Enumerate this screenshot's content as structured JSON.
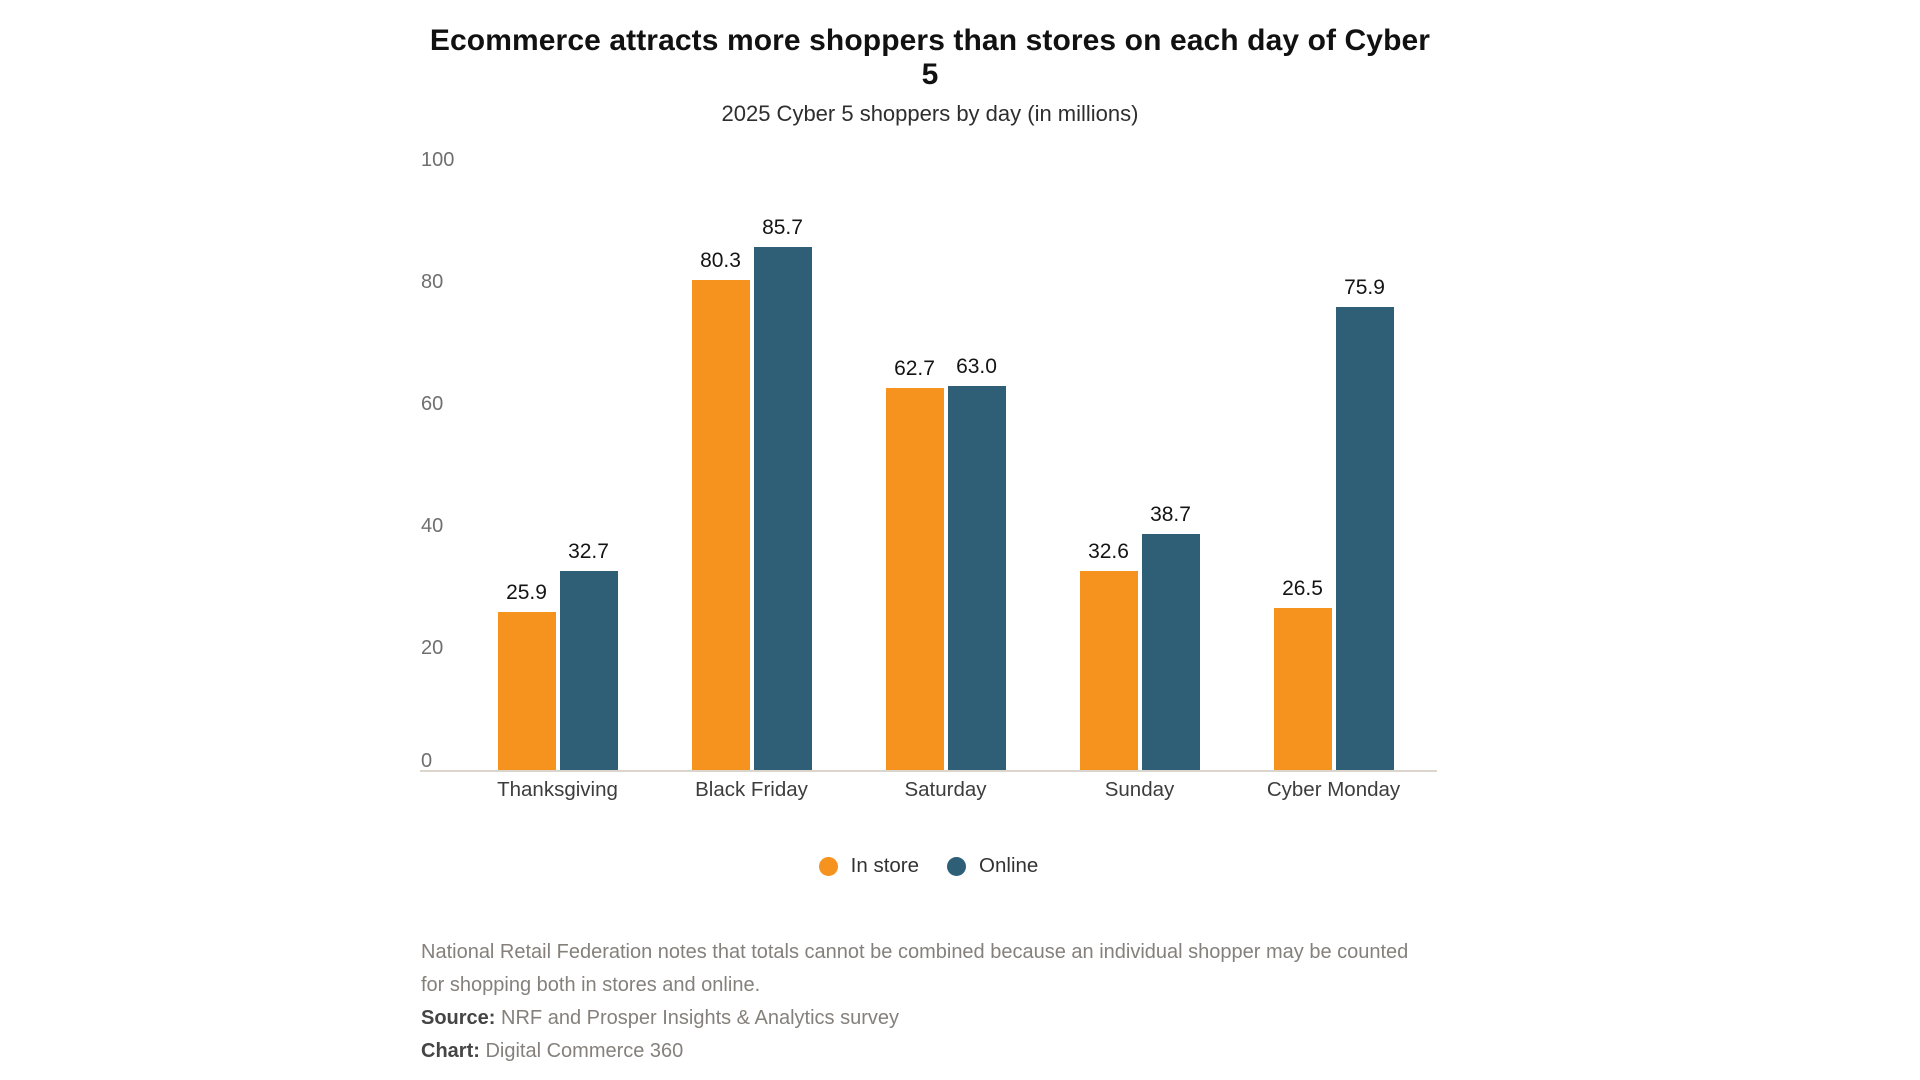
{
  "chart_data": {
    "type": "bar",
    "title": "Ecommerce attracts more shoppers than stores on each day of Cyber 5",
    "subtitle": "2025 Cyber 5 shoppers by day (in millions)",
    "categories": [
      "Thanksgiving",
      "Black Friday",
      "Saturday",
      "Sunday",
      "Cyber Monday"
    ],
    "series": [
      {
        "name": "In store",
        "color": "#F6921E",
        "values": [
          25.9,
          80.3,
          62.7,
          32.6,
          26.5
        ]
      },
      {
        "name": "Online",
        "color": "#2E5F77",
        "values": [
          32.7,
          85.7,
          63.0,
          38.7,
          75.9
        ]
      }
    ],
    "ylim": [
      0,
      100
    ],
    "yticks": [
      0,
      20,
      40,
      60,
      80,
      100
    ],
    "grid": false,
    "legend_position": "bottom",
    "value_label_decimals": 1
  },
  "notes": {
    "note": "National Retail Federation notes that totals cannot be combined because an individual shopper may be counted for shopping both in stores and online.",
    "source_label": "Source:",
    "source_value": "NRF and Prosper Insights & Analytics survey",
    "chart_label": "Chart:",
    "chart_value": "Digital Commerce 360"
  },
  "colors": {
    "in_store": "#F6921E",
    "online": "#2E5F77",
    "axis_line": "#DCD5CE",
    "tick_label": "#6F6F6F",
    "note_text": "#85807B"
  }
}
